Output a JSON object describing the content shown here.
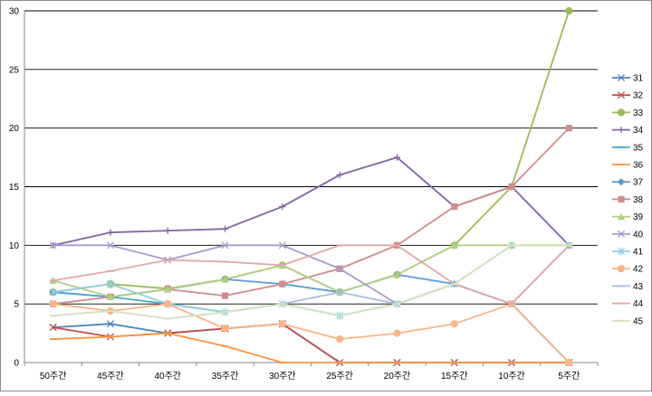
{
  "chart_data": {
    "type": "line",
    "title": "",
    "xlabel": "",
    "ylabel": "",
    "categories": [
      "50주간",
      "45주간",
      "40주간",
      "35주간",
      "30주간",
      "25주간",
      "20주간",
      "15주간",
      "10주간",
      "5주간"
    ],
    "ylim": [
      0,
      30
    ],
    "yticks": [
      0,
      5,
      10,
      15,
      20,
      25,
      30
    ],
    "grid": true,
    "legend_position": "right",
    "series": [
      {
        "name": "31",
        "color": "#4F81BD",
        "marker": "x",
        "values": [
          3,
          3.3,
          2.5,
          2.9,
          3.3,
          0,
          0,
          0,
          0,
          0
        ]
      },
      {
        "name": "32",
        "color": "#C0504D",
        "marker": "x",
        "values": [
          3,
          2.2,
          2.5,
          2.9,
          3.3,
          0,
          0,
          0,
          0,
          0
        ]
      },
      {
        "name": "33",
        "color": "#9BBB59",
        "marker": "circle",
        "values": [
          6,
          6.7,
          6.3,
          7.1,
          8.3,
          6,
          7.5,
          10,
          15,
          30
        ]
      },
      {
        "name": "34",
        "color": "#8064A2",
        "marker": "plus",
        "values": [
          10,
          11.1,
          11.25,
          11.4,
          13.3,
          16,
          17.5,
          13.3,
          15,
          10
        ]
      },
      {
        "name": "35",
        "color": "#4BACC6",
        "marker": "dash",
        "values": [
          6,
          5.6,
          5,
          4.3,
          5,
          4,
          5,
          6.7,
          5,
          0
        ]
      },
      {
        "name": "36",
        "color": "#F79646",
        "marker": "dash",
        "values": [
          2,
          2.2,
          2.5,
          1.4,
          0,
          0,
          0,
          0,
          0,
          0
        ]
      },
      {
        "name": "37",
        "color": "#5B9BD5",
        "marker": "diamond",
        "values": [
          6,
          5.6,
          6.25,
          7.1,
          6.7,
          6,
          7.5,
          6.7,
          5,
          0
        ]
      },
      {
        "name": "38",
        "color": "#D08C8C",
        "marker": "square",
        "values": [
          5,
          5.6,
          6.25,
          5.7,
          6.7,
          8,
          10,
          13.3,
          15,
          20
        ]
      },
      {
        "name": "39",
        "color": "#B2CF84",
        "marker": "triangle",
        "values": [
          7,
          5.6,
          6.25,
          7.1,
          8.3,
          6,
          7.5,
          10,
          10,
          10
        ]
      },
      {
        "name": "40",
        "color": "#A99BCB",
        "marker": "x",
        "values": [
          10,
          10,
          8.75,
          10,
          10,
          8,
          5,
          6.7,
          5,
          10
        ]
      },
      {
        "name": "41",
        "color": "#92CDDC",
        "marker": "star",
        "values": [
          6,
          6.7,
          5,
          4.3,
          5,
          4,
          5,
          6.7,
          10,
          10
        ]
      },
      {
        "name": "42",
        "color": "#F9B58A",
        "marker": "circle",
        "values": [
          5,
          4.4,
          5,
          2.9,
          3.3,
          2,
          2.5,
          3.3,
          5,
          0
        ]
      },
      {
        "name": "43",
        "color": "#A6BFDF",
        "marker": "dash",
        "values": [
          4,
          4.4,
          3.75,
          4.3,
          5,
          6,
          5,
          6.7,
          5,
          10
        ]
      },
      {
        "name": "44",
        "color": "#E1A9A7",
        "marker": "dash",
        "values": [
          7,
          7.8,
          8.75,
          8.6,
          8.3,
          10,
          10,
          6.7,
          5,
          10
        ]
      },
      {
        "name": "45",
        "color": "#D7E4BD",
        "marker": "dash",
        "values": [
          4,
          4.4,
          3.75,
          4.3,
          5,
          4,
          5,
          6.7,
          10,
          10
        ]
      }
    ]
  }
}
